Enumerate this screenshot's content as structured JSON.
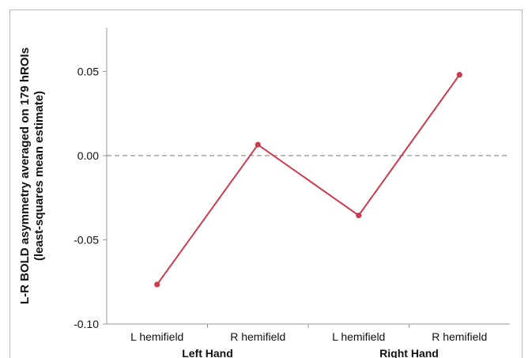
{
  "chart_data": {
    "type": "line",
    "ylabel_line1": "L-R BOLD asymmetry averaged on 179 hROIs",
    "ylabel_line2": "(least-squares mean estimate)",
    "categories": [
      "L hemifield",
      "R hemifield",
      "L hemifield",
      "R hemifield"
    ],
    "groups": [
      {
        "label": "Left Hand"
      },
      {
        "label": "Right Hand"
      }
    ],
    "series": [
      {
        "values": [
          -0.0765,
          0.0065,
          -0.0355,
          0.048
        ]
      }
    ],
    "ylim": [
      -0.1,
      0.076
    ],
    "yticks": [
      -0.1,
      -0.05,
      0.0,
      0.05
    ],
    "ytick_labels": [
      "-0.10",
      "-0.05",
      "0.00",
      "0.05"
    ],
    "reference_line": 0.0,
    "colors": {
      "series": "#cc3a4e",
      "zero_line": "#777777",
      "axis": "#999999"
    }
  }
}
